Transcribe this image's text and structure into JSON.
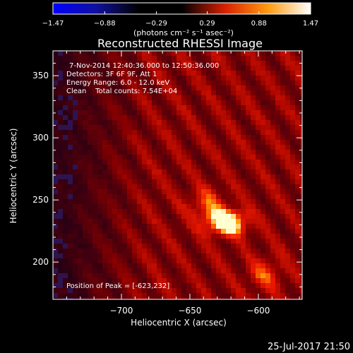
{
  "chart_data": {
    "type": "heatmap",
    "title": "Reconstructed RHESSI Image",
    "xlabel": "Heliocentric X (arcsec)",
    "ylabel": "Heliocentric Y (arcsec)",
    "xlim": [
      -750,
      -568
    ],
    "ylim": [
      170,
      370
    ],
    "x_ticks": [
      -700,
      -650,
      -600
    ],
    "y_ticks": [
      200,
      250,
      300,
      350
    ],
    "x_tick_labels": [
      "−700",
      "−650",
      "−600"
    ],
    "y_tick_labels": [
      "200",
      "250",
      "300",
      "350"
    ],
    "grid": false,
    "colorbar": {
      "min": -1.47,
      "max": 1.47,
      "ticks": [
        -1.47,
        -0.88,
        -0.29,
        0.29,
        0.88,
        1.47
      ],
      "tick_labels": [
        "−1.47",
        "−0.88",
        "−0.29",
        "0.29",
        "0.88",
        "1.47"
      ],
      "unit_label": "(photons cm⁻² s⁻¹ asec⁻²)",
      "colormap": [
        "#0000ff",
        "#1010a0",
        "#000000",
        "#000000",
        "#d82000",
        "#ff9a10",
        "#ffffff"
      ]
    },
    "annotations": [
      "7-Nov-2014 12:40:36.000 to 12:50:36.000",
      "Detectors: 3F 6F 9F, Att 1",
      "Energy Range: 6.0 - 12.0 keV",
      "Clean    Total counts: 7.54E+04"
    ],
    "peak_label": "Position of Peak = [-623,232]",
    "peak": {
      "x": -623,
      "y": 232,
      "value": 1.47
    },
    "secondary_source": {
      "x": -595,
      "y": 190
    },
    "background_level": 0.5
  },
  "footer": {
    "timestamp": "25-Jul-2017 21:50"
  }
}
